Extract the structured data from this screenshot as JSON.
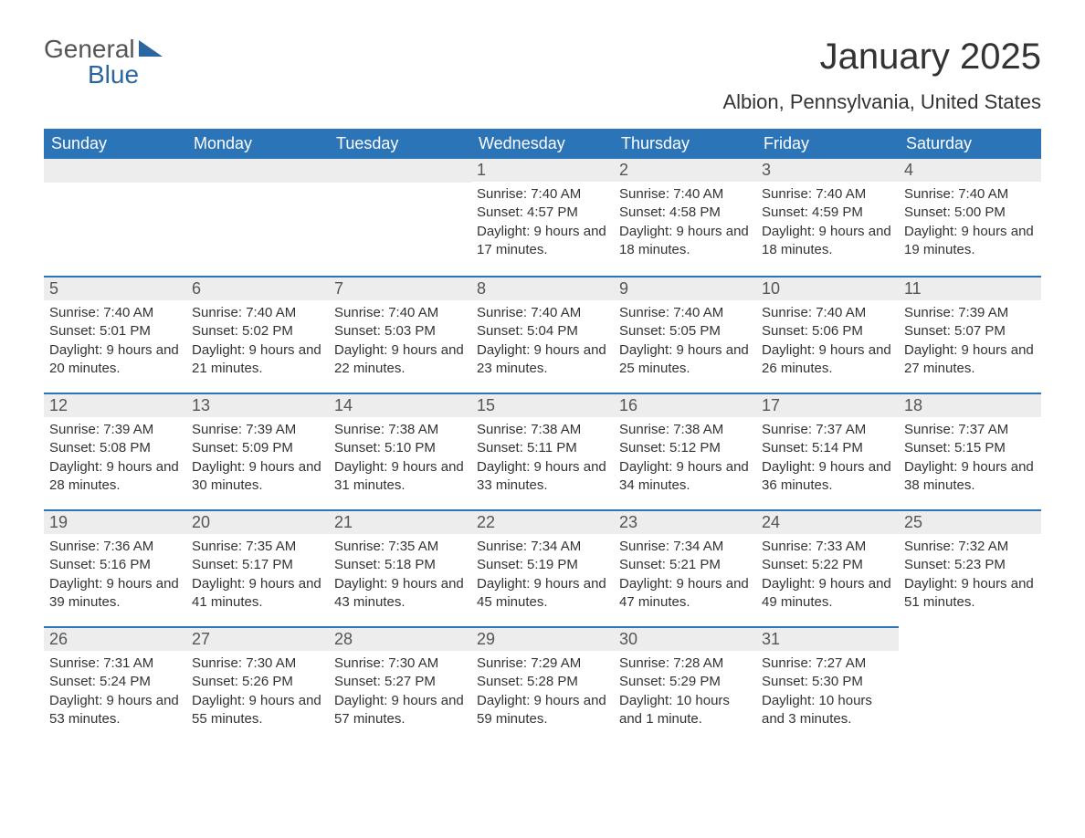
{
  "brand": {
    "line1": "General",
    "line2": "Blue"
  },
  "title": "January 2025",
  "location": "Albion, Pennsylvania, United States",
  "colors": {
    "header_bg": "#2b74b8",
    "header_text": "#ffffff",
    "daynum_bg": "#ededed",
    "row_border": "#2b74b8",
    "body_text": "#333333",
    "brand_blue": "#2b679e"
  },
  "fonts": {
    "title_size_pt": 30,
    "location_size_pt": 17,
    "header_size_pt": 14,
    "body_size_pt": 11
  },
  "layout": {
    "columns": 7,
    "rows": 5,
    "start_day_index": 3
  },
  "dayHeaders": [
    "Sunday",
    "Monday",
    "Tuesday",
    "Wednesday",
    "Thursday",
    "Friday",
    "Saturday"
  ],
  "days": [
    {
      "n": 1,
      "sunrise": "7:40 AM",
      "sunset": "4:57 PM",
      "daylight": "9 hours and 17 minutes."
    },
    {
      "n": 2,
      "sunrise": "7:40 AM",
      "sunset": "4:58 PM",
      "daylight": "9 hours and 18 minutes."
    },
    {
      "n": 3,
      "sunrise": "7:40 AM",
      "sunset": "4:59 PM",
      "daylight": "9 hours and 18 minutes."
    },
    {
      "n": 4,
      "sunrise": "7:40 AM",
      "sunset": "5:00 PM",
      "daylight": "9 hours and 19 minutes."
    },
    {
      "n": 5,
      "sunrise": "7:40 AM",
      "sunset": "5:01 PM",
      "daylight": "9 hours and 20 minutes."
    },
    {
      "n": 6,
      "sunrise": "7:40 AM",
      "sunset": "5:02 PM",
      "daylight": "9 hours and 21 minutes."
    },
    {
      "n": 7,
      "sunrise": "7:40 AM",
      "sunset": "5:03 PM",
      "daylight": "9 hours and 22 minutes."
    },
    {
      "n": 8,
      "sunrise": "7:40 AM",
      "sunset": "5:04 PM",
      "daylight": "9 hours and 23 minutes."
    },
    {
      "n": 9,
      "sunrise": "7:40 AM",
      "sunset": "5:05 PM",
      "daylight": "9 hours and 25 minutes."
    },
    {
      "n": 10,
      "sunrise": "7:40 AM",
      "sunset": "5:06 PM",
      "daylight": "9 hours and 26 minutes."
    },
    {
      "n": 11,
      "sunrise": "7:39 AM",
      "sunset": "5:07 PM",
      "daylight": "9 hours and 27 minutes."
    },
    {
      "n": 12,
      "sunrise": "7:39 AM",
      "sunset": "5:08 PM",
      "daylight": "9 hours and 28 minutes."
    },
    {
      "n": 13,
      "sunrise": "7:39 AM",
      "sunset": "5:09 PM",
      "daylight": "9 hours and 30 minutes."
    },
    {
      "n": 14,
      "sunrise": "7:38 AM",
      "sunset": "5:10 PM",
      "daylight": "9 hours and 31 minutes."
    },
    {
      "n": 15,
      "sunrise": "7:38 AM",
      "sunset": "5:11 PM",
      "daylight": "9 hours and 33 minutes."
    },
    {
      "n": 16,
      "sunrise": "7:38 AM",
      "sunset": "5:12 PM",
      "daylight": "9 hours and 34 minutes."
    },
    {
      "n": 17,
      "sunrise": "7:37 AM",
      "sunset": "5:14 PM",
      "daylight": "9 hours and 36 minutes."
    },
    {
      "n": 18,
      "sunrise": "7:37 AM",
      "sunset": "5:15 PM",
      "daylight": "9 hours and 38 minutes."
    },
    {
      "n": 19,
      "sunrise": "7:36 AM",
      "sunset": "5:16 PM",
      "daylight": "9 hours and 39 minutes."
    },
    {
      "n": 20,
      "sunrise": "7:35 AM",
      "sunset": "5:17 PM",
      "daylight": "9 hours and 41 minutes."
    },
    {
      "n": 21,
      "sunrise": "7:35 AM",
      "sunset": "5:18 PM",
      "daylight": "9 hours and 43 minutes."
    },
    {
      "n": 22,
      "sunrise": "7:34 AM",
      "sunset": "5:19 PM",
      "daylight": "9 hours and 45 minutes."
    },
    {
      "n": 23,
      "sunrise": "7:34 AM",
      "sunset": "5:21 PM",
      "daylight": "9 hours and 47 minutes."
    },
    {
      "n": 24,
      "sunrise": "7:33 AM",
      "sunset": "5:22 PM",
      "daylight": "9 hours and 49 minutes."
    },
    {
      "n": 25,
      "sunrise": "7:32 AM",
      "sunset": "5:23 PM",
      "daylight": "9 hours and 51 minutes."
    },
    {
      "n": 26,
      "sunrise": "7:31 AM",
      "sunset": "5:24 PM",
      "daylight": "9 hours and 53 minutes."
    },
    {
      "n": 27,
      "sunrise": "7:30 AM",
      "sunset": "5:26 PM",
      "daylight": "9 hours and 55 minutes."
    },
    {
      "n": 28,
      "sunrise": "7:30 AM",
      "sunset": "5:27 PM",
      "daylight": "9 hours and 57 minutes."
    },
    {
      "n": 29,
      "sunrise": "7:29 AM",
      "sunset": "5:28 PM",
      "daylight": "9 hours and 59 minutes."
    },
    {
      "n": 30,
      "sunrise": "7:28 AM",
      "sunset": "5:29 PM",
      "daylight": "10 hours and 1 minute."
    },
    {
      "n": 31,
      "sunrise": "7:27 AM",
      "sunset": "5:30 PM",
      "daylight": "10 hours and 3 minutes."
    }
  ],
  "labels": {
    "sunrise": "Sunrise: ",
    "sunset": "Sunset: ",
    "daylight": "Daylight: "
  }
}
